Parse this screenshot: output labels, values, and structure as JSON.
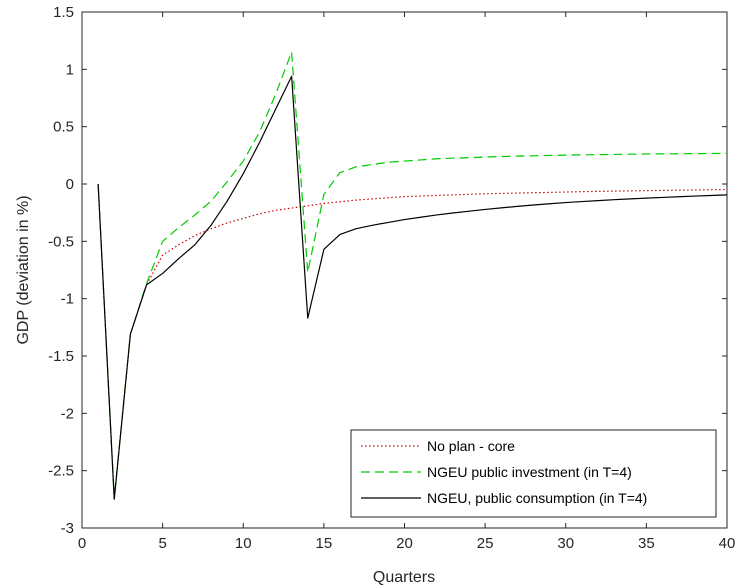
{
  "chart_data": {
    "type": "line",
    "title": "",
    "xlabel": "Quarters",
    "ylabel": "GDP (deviation in %)",
    "xlim": [
      0,
      40
    ],
    "ylim": [
      -3,
      1.5
    ],
    "xticks": [
      0,
      5,
      10,
      15,
      20,
      25,
      30,
      35,
      40
    ],
    "yticks": [
      -3,
      -2.5,
      -2,
      -1.5,
      -1,
      -0.5,
      0,
      0.5,
      1,
      1.5
    ],
    "grid": false,
    "legend_position": "bottom-right",
    "x": [
      1,
      2,
      3,
      4,
      5,
      6,
      7,
      8,
      9,
      10,
      11,
      12,
      13,
      14,
      15,
      16,
      17,
      18,
      19,
      20,
      21,
      22,
      23,
      24,
      25,
      26,
      27,
      28,
      29,
      30,
      31,
      32,
      33,
      34,
      35,
      36,
      37,
      38,
      39,
      40
    ],
    "series": [
      {
        "name": "No plan - core",
        "color": "#cc0000",
        "style": "dotted",
        "values": [
          0,
          -2.74,
          -1.31,
          -0.88,
          -0.62,
          -0.53,
          -0.45,
          -0.39,
          -0.34,
          -0.3,
          -0.26,
          -0.23,
          -0.21,
          -0.19,
          -0.17,
          -0.155,
          -0.14,
          -0.13,
          -0.12,
          -0.11,
          -0.105,
          -0.1,
          -0.095,
          -0.09,
          -0.085,
          -0.082,
          -0.079,
          -0.076,
          -0.073,
          -0.07,
          -0.067,
          -0.064,
          -0.062,
          -0.06,
          -0.058,
          -0.056,
          -0.054,
          -0.052,
          -0.05,
          -0.048
        ]
      },
      {
        "name": "NGEU public investment (in T=4)",
        "color": "#00cc00",
        "style": "dashed",
        "values": [
          0,
          -2.74,
          -1.31,
          -0.87,
          -0.5,
          -0.38,
          -0.27,
          -0.15,
          0.02,
          0.2,
          0.45,
          0.78,
          1.15,
          -0.77,
          -0.09,
          0.1,
          0.15,
          0.17,
          0.19,
          0.2,
          0.21,
          0.22,
          0.225,
          0.23,
          0.235,
          0.24,
          0.243,
          0.246,
          0.249,
          0.252,
          0.254,
          0.256,
          0.258,
          0.26,
          0.262,
          0.263,
          0.264,
          0.265,
          0.266,
          0.267
        ]
      },
      {
        "name": "NGEU, public consumption (in T=4)",
        "color": "#000000",
        "style": "solid",
        "values": [
          0,
          -2.75,
          -1.31,
          -0.88,
          -0.78,
          -0.65,
          -0.53,
          -0.36,
          -0.15,
          0.09,
          0.36,
          0.65,
          0.94,
          -1.17,
          -0.57,
          -0.44,
          -0.39,
          -0.36,
          -0.335,
          -0.31,
          -0.29,
          -0.27,
          -0.253,
          -0.237,
          -0.222,
          -0.208,
          -0.195,
          -0.183,
          -0.172,
          -0.162,
          -0.153,
          -0.145,
          -0.137,
          -0.13,
          -0.123,
          -0.117,
          -0.111,
          -0.105,
          -0.1,
          -0.095
        ]
      }
    ]
  }
}
